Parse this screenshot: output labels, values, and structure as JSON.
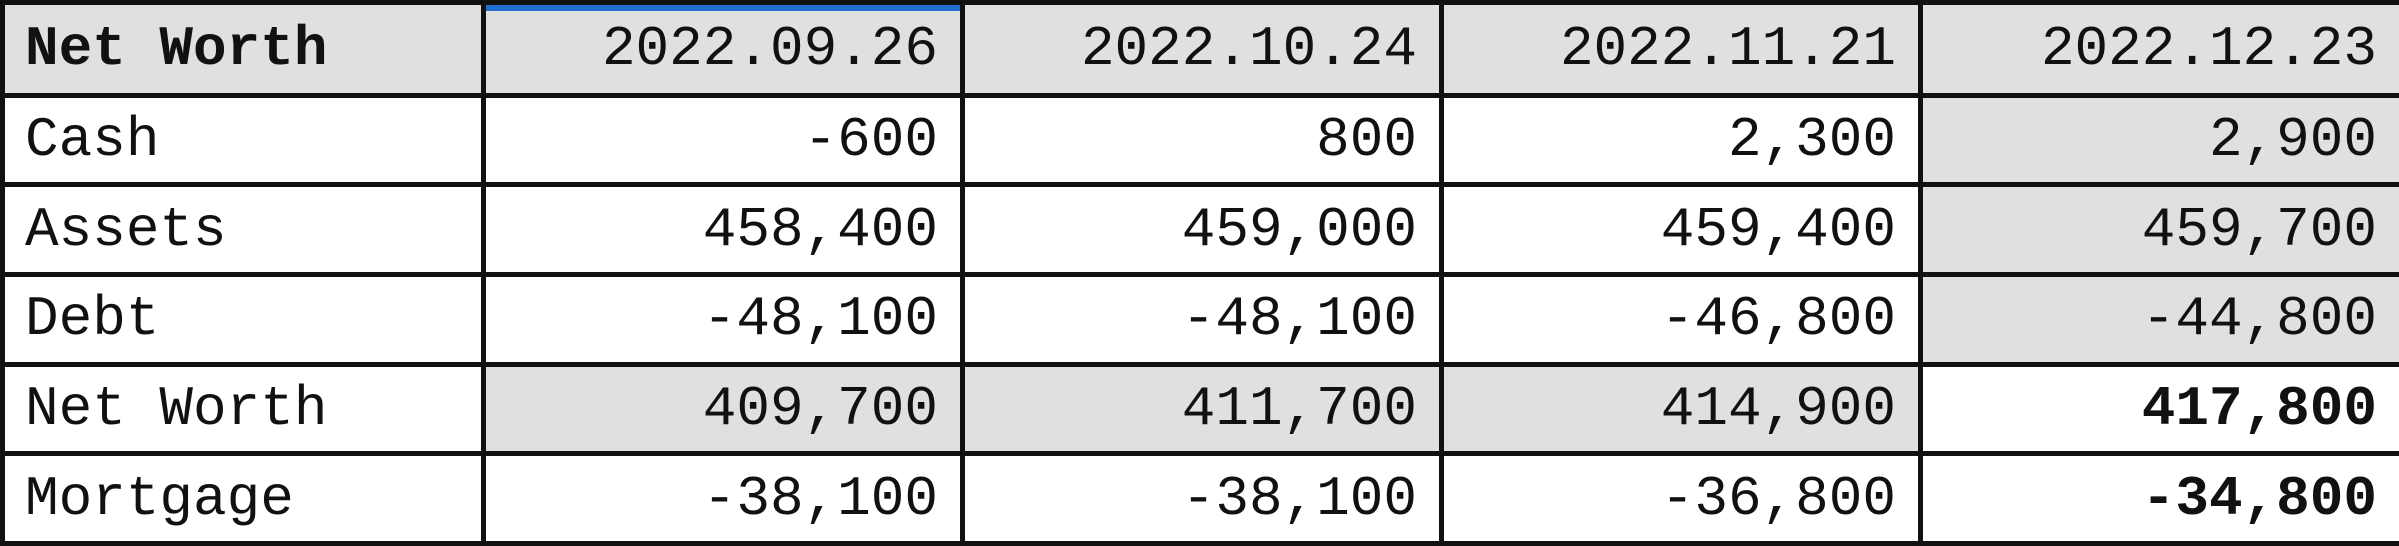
{
  "table": {
    "header": {
      "label": "Net Worth",
      "dates": [
        "2022.09.26",
        "2022.10.24",
        "2022.11.21",
        "2022.12.23"
      ]
    },
    "rows": [
      {
        "label": "Cash",
        "values": [
          "-600",
          "800",
          "2,300",
          "2,900"
        ]
      },
      {
        "label": "Assets",
        "values": [
          "458,400",
          "459,000",
          "459,400",
          "459,700"
        ]
      },
      {
        "label": "Debt",
        "values": [
          "-48,100",
          "-48,100",
          "-46,800",
          "-44,800"
        ]
      },
      {
        "label": "Net Worth",
        "values": [
          "409,700",
          "411,700",
          "414,900",
          "417,800"
        ]
      },
      {
        "label": "Mortgage",
        "values": [
          "-38,100",
          "-38,100",
          "-36,800",
          "-34,800"
        ]
      }
    ]
  },
  "colors": {
    "gray_fill": "#e0e0e0",
    "border": "#111111",
    "selection": "#1f6fd1"
  }
}
